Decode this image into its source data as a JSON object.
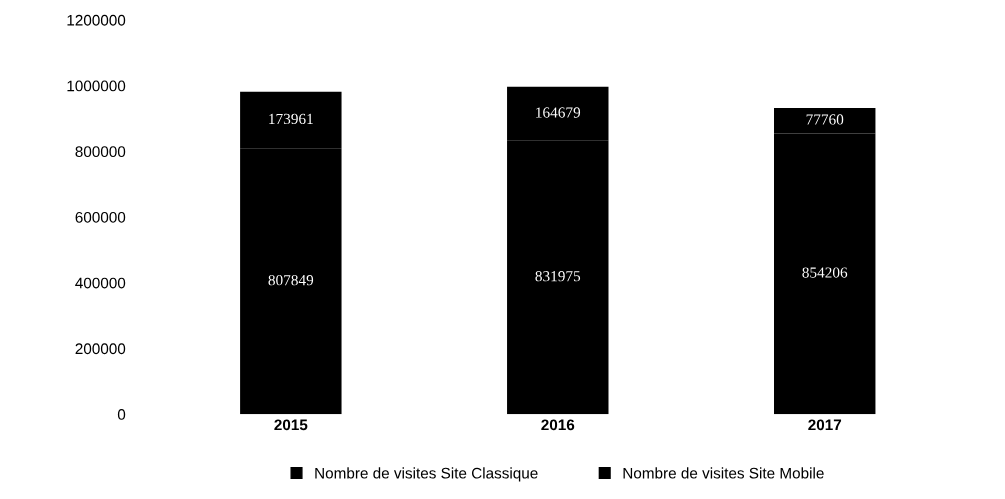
{
  "chart_data": {
    "type": "bar",
    "stacked": true,
    "categories": [
      "2015",
      "2016",
      "2017"
    ],
    "series": [
      {
        "name": "Nombre de visites Site Classique",
        "color": "#000000",
        "values": [
          807849,
          831975,
          854206
        ]
      },
      {
        "name": "Nombre de visites Site Mobile",
        "color": "#000000",
        "values": [
          173961,
          164679,
          77760
        ]
      }
    ],
    "ylim": [
      0,
      1200000
    ],
    "yticks": [
      0,
      200000,
      400000,
      600000,
      800000,
      1000000,
      1200000
    ],
    "data_labels": true,
    "legend": "bottom",
    "grid": false
  }
}
